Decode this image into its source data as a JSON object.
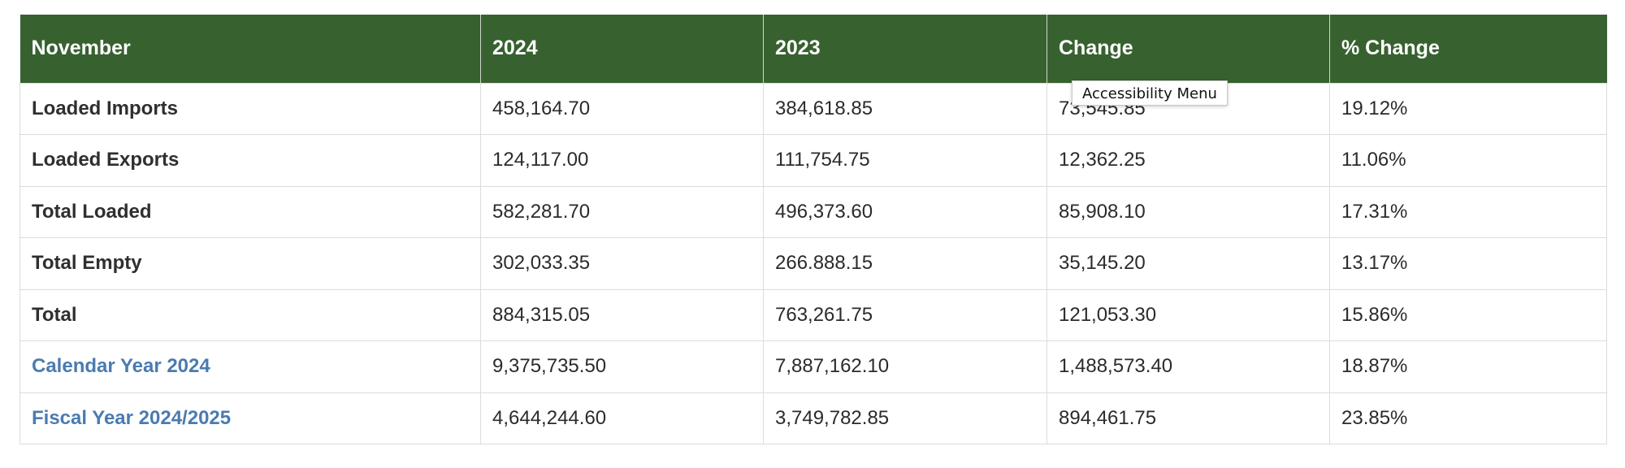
{
  "table": {
    "headers": [
      "November",
      "2024",
      "2023",
      "Change",
      "% Change"
    ],
    "rows": [
      {
        "label": "Loaded Imports",
        "link": false,
        "cells": [
          "458,164.70",
          "384,618.85",
          "73,545.85",
          "19.12%"
        ]
      },
      {
        "label": "Loaded Exports",
        "link": false,
        "cells": [
          "124,117.00",
          "111,754.75",
          "12,362.25",
          "11.06%"
        ]
      },
      {
        "label": "Total Loaded",
        "link": false,
        "cells": [
          "582,281.70",
          "496,373.60",
          "85,908.10",
          "17.31%"
        ]
      },
      {
        "label": "Total Empty",
        "link": false,
        "cells": [
          "302,033.35",
          "266.888.15",
          "35,145.20",
          "13.17%"
        ]
      },
      {
        "label": "Total",
        "link": false,
        "cells": [
          "884,315.05",
          "763,261.75",
          "121,053.30",
          "15.86%"
        ]
      },
      {
        "label": "Calendar Year 2024",
        "link": true,
        "cells": [
          "9,375,735.50",
          "7,887,162.10",
          "1,488,573.40",
          "18.87%"
        ]
      },
      {
        "label": "Fiscal Year 2024/2025",
        "link": true,
        "cells": [
          "4,644,244.60",
          "3,749,782.85",
          "894,461.75",
          "23.85%"
        ]
      }
    ]
  },
  "tooltip": {
    "text": "Accessibility Menu"
  },
  "colors": {
    "header_bg": "#386130",
    "header_text": "#ffffff",
    "link": "#4a7bb1",
    "text": "#2b2b2b",
    "border": "#dcdcdc"
  }
}
